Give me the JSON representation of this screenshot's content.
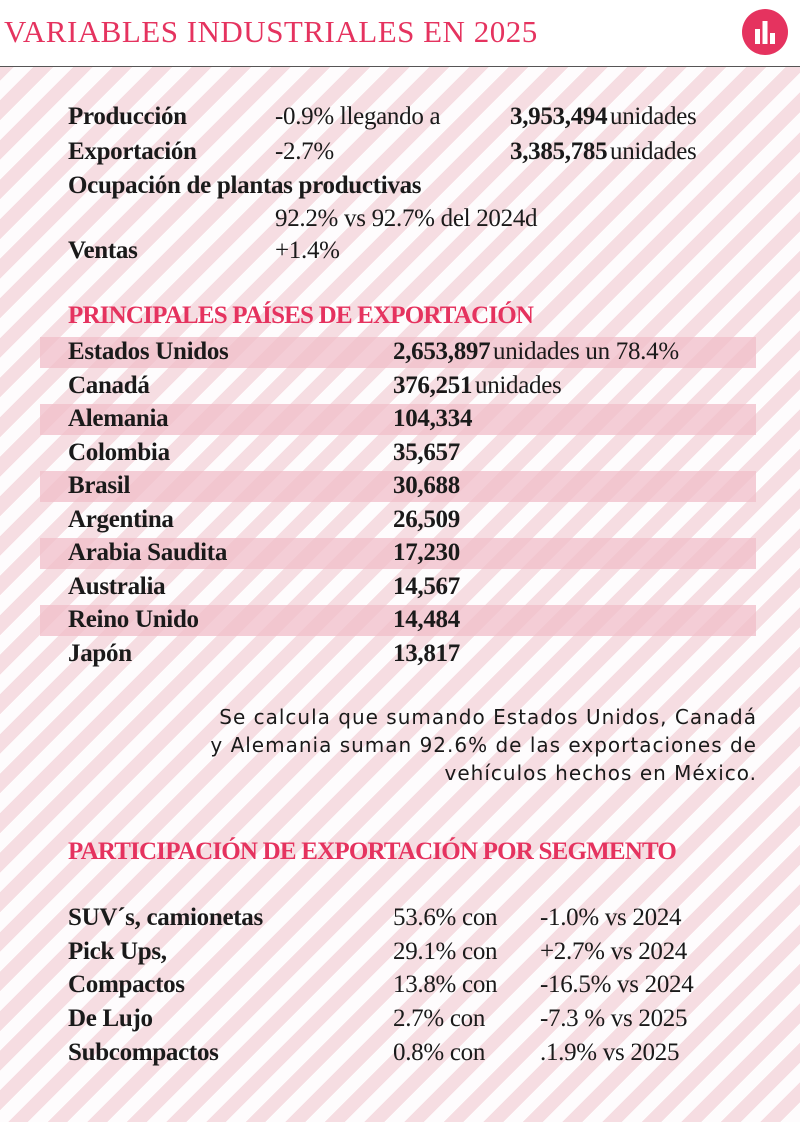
{
  "header": {
    "title": "VARIABLES INDUSTRIALES EN 2025"
  },
  "summary": {
    "rows": [
      {
        "label": "Producción",
        "change": "-0.9% llegando a",
        "value": "3,953,494",
        "unit": "unidades"
      },
      {
        "label": "Exportación",
        "change": "-2.7%",
        "value": "3,385,785",
        "unit": "unidades"
      },
      {
        "label": "Ocupación de plantas productivas",
        "detail": "92.2% vs 92.7% del 2024d"
      },
      {
        "label": "Ventas",
        "change": "+1.4%"
      }
    ]
  },
  "countries": {
    "title": "PRINCIPALES PAÍSES DE EXPORTACIÓN",
    "rows": [
      {
        "name": "Estados Unidos",
        "value": "2,653,897",
        "note": "unidades un 78.4%"
      },
      {
        "name": "Canadá",
        "value": "376,251",
        "note": "unidades"
      },
      {
        "name": "Alemania",
        "value": "104,334"
      },
      {
        "name": "Colombia",
        "value": "35,657"
      },
      {
        "name": "Brasil",
        "value": "30,688"
      },
      {
        "name": "Argentina",
        "value": "26,509"
      },
      {
        "name": "Arabia Saudita",
        "value": "17,230"
      },
      {
        "name": "Australia",
        "value": "14,567"
      },
      {
        "name": "Reino Unido",
        "value": "14,484"
      },
      {
        "name": "Japón",
        "value": "13,817"
      }
    ]
  },
  "note": {
    "lines": [
      "Se calcula que sumando Estados Unidos, Canadá",
      "y Alemania suman 92.6% de las exportaciones de",
      "vehículos hechos en México."
    ]
  },
  "segments": {
    "title": "PARTICIPACIÓN DE EXPORTACIÓN POR SEGMENTO",
    "rows": [
      {
        "label": "SUV´s, camionetas",
        "share": "53.6% con",
        "change": "-1.0% vs 2024"
      },
      {
        "label": "Pick Ups,",
        "share": "29.1% con",
        "change": "+2.7% vs 2024"
      },
      {
        "label": "Compactos",
        "share": "13.8% con",
        "change": "-16.5% vs 2024"
      },
      {
        "label": "De Lujo",
        "share": "2.7% con",
        "change": "-7.3 % vs 2025"
      },
      {
        "label": "Subcompactos",
        "share": "0.8% con",
        "change": ".1.9% vs 2025"
      }
    ]
  }
}
